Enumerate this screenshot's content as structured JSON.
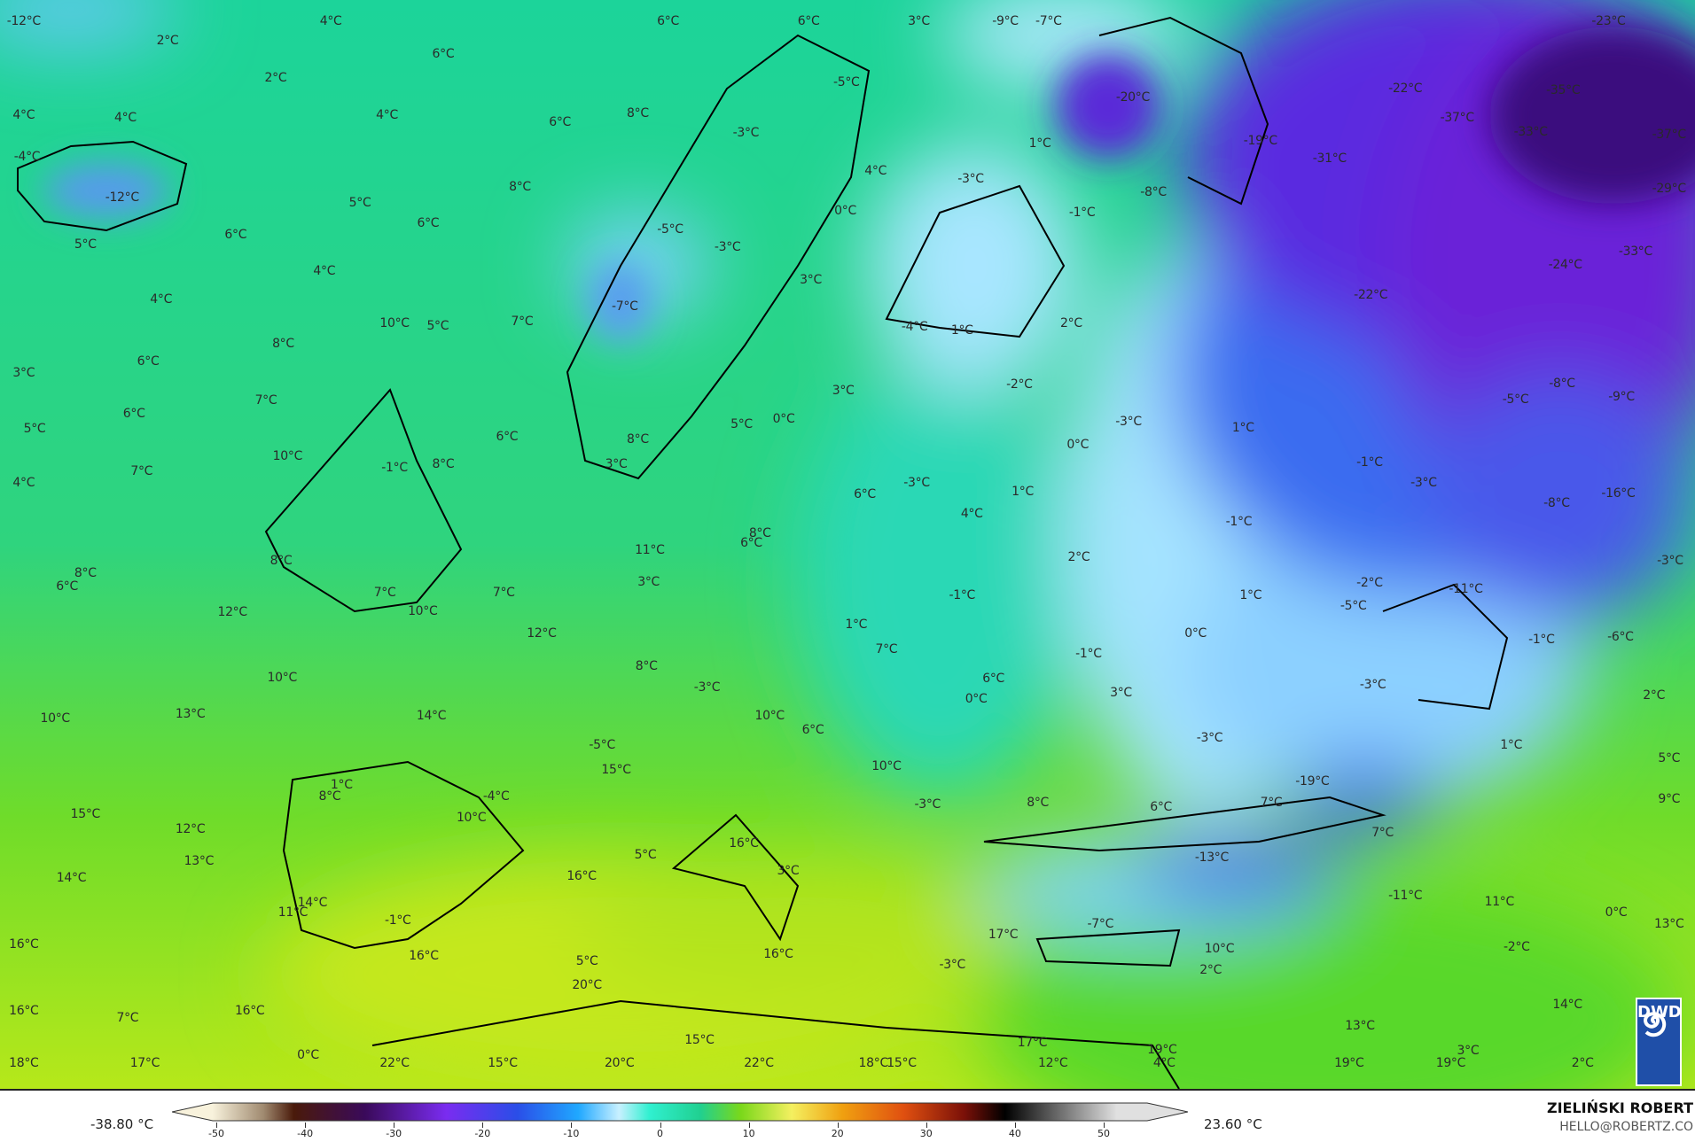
{
  "map": {
    "labels": [
      "-12°C",
      "4°C",
      "6°C",
      "6°C",
      "3°C",
      "-9°C",
      "-7°C",
      "-23°C",
      "2°C",
      "6°C",
      "2°C",
      "-5°C",
      "-20°C",
      "-22°C",
      "-35°C",
      "4°C",
      "4°C",
      "4°C",
      "6°C",
      "8°C",
      "-37°C",
      "-33°C",
      "-37°C",
      "-3°C",
      "-19°C",
      "-31°C",
      "1°C",
      "-4°C",
      "-12°C",
      "4°C",
      "-3°C",
      "-8°C",
      "-29°C",
      "8°C",
      "5°C",
      "6°C",
      "0°C",
      "-1°C",
      "6°C",
      "5°C",
      "-5°C",
      "-3°C",
      "-33°C",
      "-24°C",
      "4°C",
      "3°C",
      "-22°C",
      "4°C",
      "-7°C",
      "10°C",
      "5°C",
      "7°C",
      "-4°C",
      "1°C",
      "2°C",
      "8°C",
      "6°C",
      "3°C",
      "-2°C",
      "-8°C",
      "-9°C",
      "-5°C",
      "7°C",
      "3°C",
      "6°C",
      "0°C",
      "5°C",
      "-3°C",
      "1°C",
      "5°C",
      "6°C",
      "8°C",
      "0°C",
      "10°C",
      "-1°C",
      "8°C",
      "3°C",
      "7°C",
      "-1°C",
      "-3°C",
      "-3°C",
      "4°C",
      "6°C",
      "1°C",
      "-16°C",
      "-8°C",
      "4°C",
      "-1°C",
      "8°C",
      "6°C",
      "11°C",
      "-3°C",
      "8°C",
      "2°C",
      "8°C",
      "6°C",
      "3°C",
      "7°C",
      "7°C",
      "-1°C",
      "1°C",
      "-2°C",
      "-11°C",
      "-5°C",
      "12°C",
      "10°C",
      "12°C",
      "1°C",
      "0°C",
      "-1°C",
      "-6°C",
      "7°C",
      "-1°C",
      "8°C",
      "-3°C",
      "6°C",
      "10°C",
      "0°C",
      "3°C",
      "-3°C",
      "2°C",
      "10°C",
      "13°C",
      "14°C",
      "10°C",
      "6°C",
      "-3°C",
      "1°C",
      "-5°C",
      "5°C",
      "15°C",
      "10°C",
      "1°C",
      "8°C",
      "-4°C",
      "-19°C",
      "15°C",
      "10°C",
      "-3°C",
      "8°C",
      "6°C",
      "7°C",
      "9°C",
      "12°C",
      "7°C",
      "16°C",
      "5°C",
      "13°C",
      "-13°C",
      "14°C",
      "16°C",
      "3°C",
      "14°C",
      "11°C",
      "-1°C",
      "-11°C",
      "11°C",
      "0°C",
      "-7°C",
      "13°C",
      "16°C",
      "17°C",
      "16°C",
      "16°C",
      "5°C",
      "-3°C",
      "10°C",
      "-2°C",
      "20°C",
      "2°C",
      "16°C",
      "7°C",
      "16°C",
      "14°C",
      "15°C",
      "17°C",
      "13°C",
      "19°C",
      "0°C",
      "3°C",
      "18°C",
      "17°C",
      "22°C",
      "15°C",
      "20°C",
      "22°C",
      "18°C",
      "15°C",
      "12°C",
      "4°C",
      "19°C",
      "19°C",
      "2°C"
    ],
    "logo": "DWD"
  },
  "legend": {
    "min_label": "-38.80 °C",
    "max_label": "23.60 °C",
    "ticks": [
      "-50",
      "-40",
      "-30",
      "-20",
      "-10",
      "0",
      "10",
      "20",
      "30",
      "40",
      "50"
    ],
    "colors": {
      "cold_extreme": "#3a0a6e",
      "purple": "#7a2cf0",
      "blue": "#2a5ef0",
      "light_blue": "#aee6ff",
      "teal": "#22d8b0",
      "green": "#7ad81a",
      "yellow": "#f2e83a",
      "orange": "#f07a10",
      "red": "#b81a0a",
      "black": "#111111"
    }
  },
  "credits": {
    "author": "ZIELIŃSKI ROBERT",
    "email": "HELLO@ROBERTZ.CO"
  }
}
